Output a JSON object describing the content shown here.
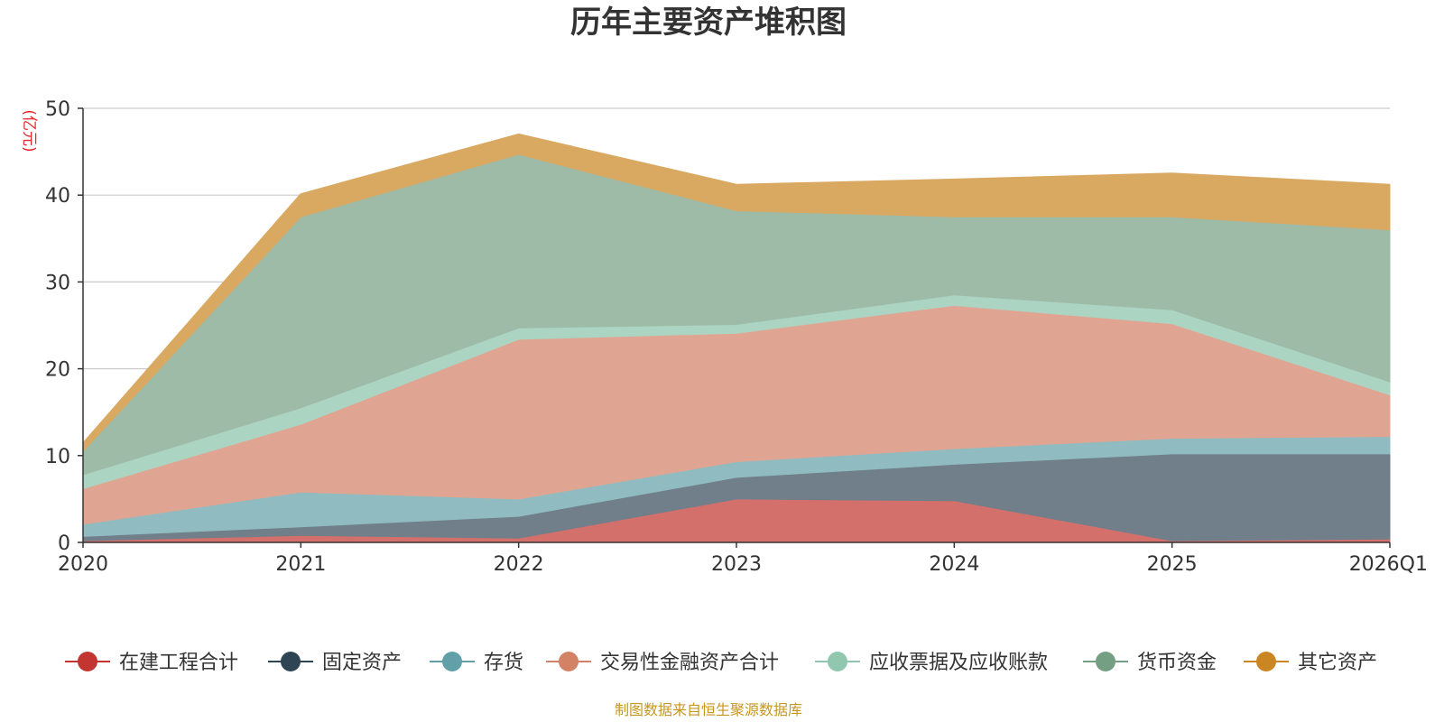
{
  "chart_data": {
    "type": "area",
    "stacked": true,
    "title": "历年主要资产堆积图",
    "ylabel": "(亿元)",
    "ylim": [
      0,
      50
    ],
    "yticks": [
      0,
      10,
      20,
      30,
      40,
      50
    ],
    "categories": [
      "2020",
      "2021",
      "2022",
      "2023",
      "2024",
      "2025",
      "2026Q1"
    ],
    "grid": true,
    "legend_position": "bottom",
    "series": [
      {
        "name": "在建工程合计",
        "color": "#c23531",
        "fill": "#d4706c",
        "values": [
          0.2,
          0.8,
          0.5,
          5.0,
          4.8,
          0.2,
          0.4
        ]
      },
      {
        "name": "固定资产",
        "color": "#2f4554",
        "fill": "#707f8a",
        "values": [
          0.5,
          1.0,
          2.5,
          2.5,
          4.2,
          10.0,
          9.8
        ]
      },
      {
        "name": "存货",
        "color": "#61a0a8",
        "fill": "#90bcc1",
        "values": [
          1.4,
          4.0,
          2.0,
          1.8,
          1.8,
          1.8,
          2.0
        ]
      },
      {
        "name": "交易性金融资产合计",
        "color": "#d48265",
        "fill": "#e0a592",
        "values": [
          4.1,
          7.8,
          18.4,
          14.8,
          16.5,
          13.2,
          4.8
        ]
      },
      {
        "name": "应收票据及应收账款",
        "color": "#91c7ae",
        "fill": "#acd4c2",
        "values": [
          1.6,
          1.9,
          1.3,
          1.0,
          1.2,
          1.6,
          1.5
        ]
      },
      {
        "name": "货币资金",
        "color": "#749f83",
        "fill": "#9ebba8",
        "values": [
          2.7,
          22.0,
          20.0,
          13.1,
          9.0,
          10.7,
          17.5
        ]
      },
      {
        "name": "其它资产",
        "color": "#ca8622",
        "fill": "#d9a962",
        "values": [
          0.9,
          2.6,
          2.3,
          3.0,
          4.3,
          5.0,
          5.2
        ]
      }
    ]
  },
  "source_note": "制图数据来自恒生聚源数据库"
}
